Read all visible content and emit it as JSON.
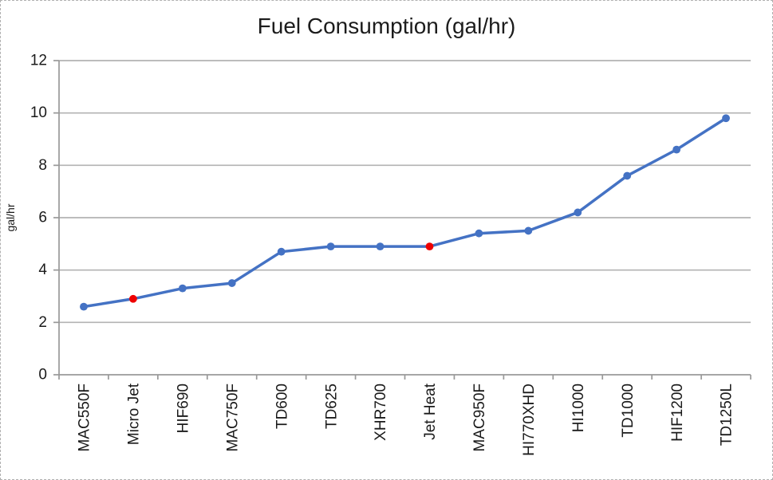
{
  "figure": {
    "background": "#ffffff",
    "border_color": "#b0b0b0",
    "border_style": "dashed"
  },
  "chart_data": {
    "type": "line",
    "title": "Fuel Consumption (gal/hr)",
    "xlabel": "",
    "ylabel": "gal/hr",
    "categories": [
      "MAC550F",
      "Micro Jet",
      "HIF690",
      "MAC750F",
      "TD600",
      "TD625",
      "XHR700",
      "Jet Heat",
      "MAC950F",
      "HI770XHD",
      "HI1000",
      "TD1000",
      "HIF1200",
      "TD1250L"
    ],
    "values": [
      2.6,
      2.9,
      3.3,
      3.5,
      4.7,
      4.9,
      4.9,
      4.9,
      5.4,
      5.5,
      6.2,
      7.6,
      8.6,
      9.8
    ],
    "highlighted_indices": [
      1,
      7
    ],
    "ylim": [
      0,
      12
    ],
    "yticks": [
      0,
      2,
      4,
      6,
      8,
      10,
      12
    ],
    "grid": "horizontal",
    "legend": "none",
    "x_labels_rotated_degrees": 90,
    "colors": {
      "line": "#4472c4",
      "marker": "#4472c4",
      "highlight_marker": "#ee0000",
      "grid": "#b3b3b3",
      "axis": "#999999",
      "text": "#1a1a1a",
      "title": "#1c1c1c"
    }
  }
}
